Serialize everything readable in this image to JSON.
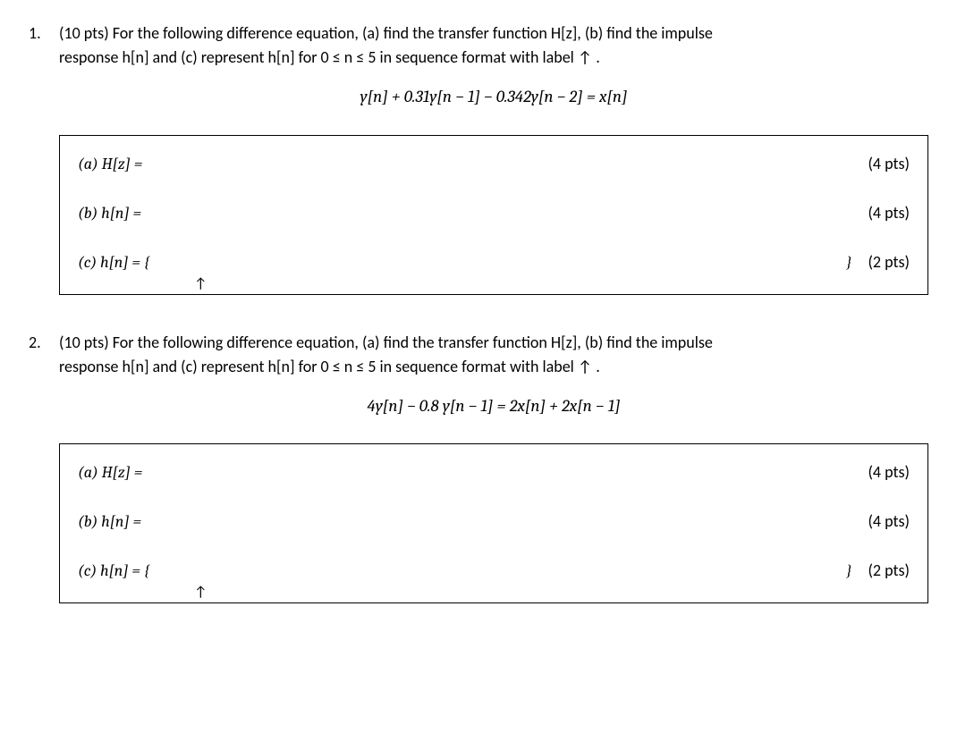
{
  "problems": [
    {
      "number": "1.",
      "points": "(10 pts)",
      "intro_a": "For the following difference equation, (a) find the transfer function H[z], (b) find the impulse",
      "intro_b": "response h[n] and (c) represent h[n] for 0 ≤ n ≤ 5 in sequence format with label  ↑ .",
      "equation": "y[n] + 0.31y[n − 1] − 0.342y[n − 2] =  x[n]",
      "parts": {
        "a": {
          "label": "(a) H[z] =",
          "pts": "(4 pts)"
        },
        "b": {
          "label": "(b) h[n] =",
          "pts": "(4 pts)"
        },
        "c": {
          "label": "(c) h[n] = {",
          "close": "}",
          "pts": "(2 pts)",
          "arrow": "↑"
        }
      }
    },
    {
      "number": "2.",
      "points": "(10 pts)",
      "intro_a": " For the following difference equation, (a) find the transfer function H[z], (b) find the impulse",
      "intro_b": "response h[n] and (c) represent h[n] for 0 ≤ n ≤ 5 in sequence format with label  ↑ .",
      "equation": "4y[n] − 0.8 y[n − 1] = 2x[n] + 2x[n − 1]",
      "parts": {
        "a": {
          "label": "(a) H[z] =",
          "pts": "(4 pts)"
        },
        "b": {
          "label": "(b) h[n] =",
          "pts": "(4 pts)"
        },
        "c": {
          "label": "(c) h[n] = {",
          "close": "}",
          "pts": "(2 pts)",
          "arrow": "↑"
        }
      }
    }
  ]
}
